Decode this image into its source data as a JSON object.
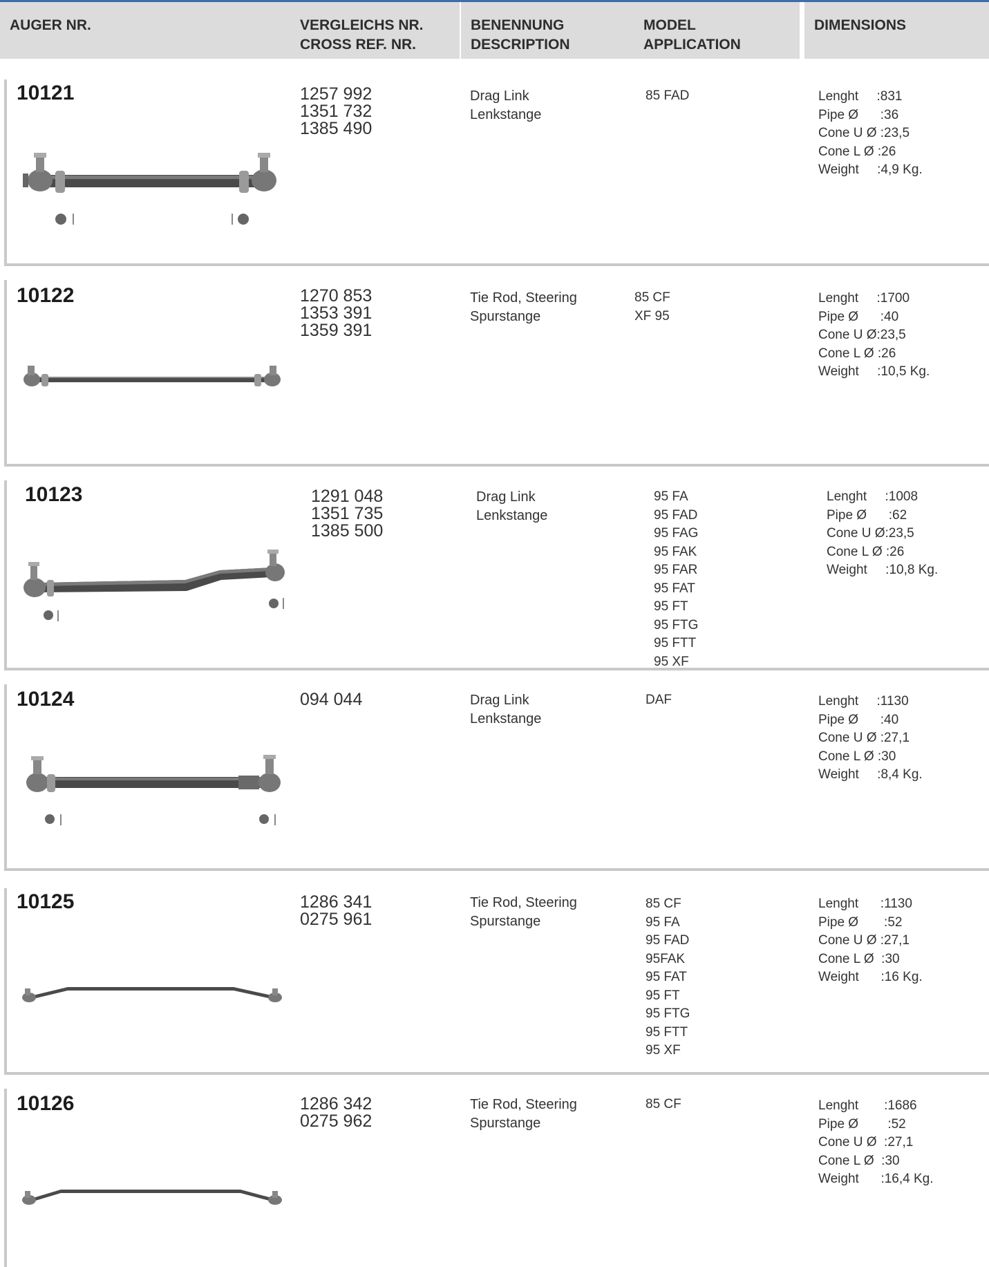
{
  "header": {
    "col1": "AUGER NR.",
    "col2_line1": "VERGLEICHS NR.",
    "col2_line2": "CROSS REF. NR.",
    "col3_line1": "BENENNUNG",
    "col3_line2": "DESCRIPTION",
    "col4_line1": "MODEL",
    "col4_line2": "APPLICATION",
    "col5": "DIMENSIONS"
  },
  "rows": [
    {
      "code": "10121",
      "refs": [
        "1257 992",
        "1351 732",
        "1385 490"
      ],
      "desc": [
        "Drag Link",
        "Lenkstange"
      ],
      "models": [
        "85 FAD"
      ],
      "dims": [
        "Lenght     :831",
        "Pipe Ø      :36",
        "Cone U Ø :23,5",
        "Cone L Ø :26",
        "Weight     :4,9 Kg."
      ]
    },
    {
      "code": "10122",
      "refs": [
        "1270 853",
        "1353 391",
        "1359 391"
      ],
      "desc": [
        "Tie Rod, Steering",
        "Spurstange"
      ],
      "models": [
        "85 CF",
        "XF 95"
      ],
      "dims": [
        "Lenght     :1700",
        "Pipe Ø      :40",
        "Cone U Ø:23,5",
        "Cone L Ø :26",
        "Weight     :10,5 Kg."
      ]
    },
    {
      "code": "10123",
      "refs": [
        "1291 048",
        "1351 735",
        "1385 500"
      ],
      "desc": [
        "Drag Link",
        "Lenkstange"
      ],
      "models": [
        "95 FA",
        "95 FAD",
        "95 FAG",
        "95 FAK",
        "95 FAR",
        "95 FAT",
        "95 FT",
        "95 FTG",
        "95 FTT",
        "95 XF"
      ],
      "dims": [
        "Lenght     :1008",
        "Pipe Ø      :62",
        "Cone U Ø:23,5",
        "Cone L Ø :26",
        "Weight     :10,8 Kg."
      ]
    },
    {
      "code": "10124",
      "refs": [
        "094 044"
      ],
      "desc": [
        "Drag Link",
        "Lenkstange"
      ],
      "models": [
        "DAF"
      ],
      "dims": [
        "Lenght     :1130",
        "Pipe Ø      :40",
        "Cone U Ø :27,1",
        "Cone L Ø :30",
        "Weight     :8,4 Kg."
      ]
    },
    {
      "code": "10125",
      "refs": [
        "1286 341",
        "0275 961"
      ],
      "desc": [
        "Tie Rod, Steering",
        "Spurstange"
      ],
      "models": [
        "85 CF",
        "95 FA",
        "95 FAD",
        "95FAK",
        "95 FAT",
        "95 FT",
        "95 FTG",
        "95 FTT",
        "95 XF"
      ],
      "dims": [
        "Lenght      :1130",
        "Pipe Ø       :52",
        "Cone U Ø :27,1",
        "Cone L Ø  :30",
        "Weight      :16 Kg."
      ]
    },
    {
      "code": "10126",
      "refs": [
        "1286 342",
        "0275 962"
      ],
      "desc": [
        "Tie Rod, Steering",
        "Spurstange"
      ],
      "models": [
        "85 CF"
      ],
      "dims": [
        "Lenght       :1686",
        "Pipe Ø        :52",
        "Cone U Ø  :27,1",
        "Cone L Ø  :30",
        "Weight      :16,4 Kg."
      ]
    }
  ]
}
